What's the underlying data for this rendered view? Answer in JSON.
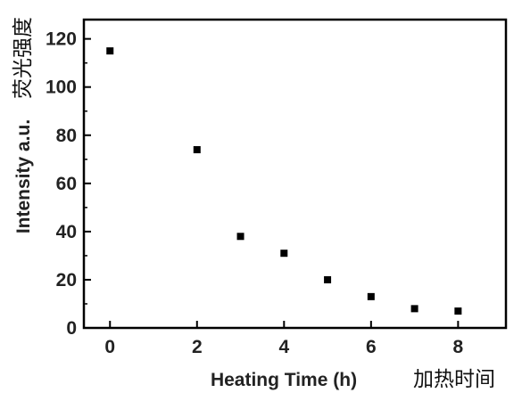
{
  "chart_data": {
    "type": "scatter",
    "xlabel": "Heating Time (h)",
    "xlabel_cn": "加热时间",
    "ylabel": "Intensity a.u.",
    "ylabel_cn": "荧光强度",
    "xlim": [
      -0.6,
      9.1
    ],
    "ylim": [
      0,
      128
    ],
    "xticks": [
      0,
      2,
      4,
      6,
      8
    ],
    "yticks": [
      0,
      20,
      40,
      60,
      80,
      100,
      120
    ],
    "marker": "square",
    "marker_color": "#000000",
    "series": [
      {
        "x": [
          0,
          2,
          3,
          4,
          5,
          6,
          7,
          8
        ],
        "y": [
          115,
          74,
          38,
          31,
          20,
          13,
          8,
          7
        ]
      }
    ]
  }
}
